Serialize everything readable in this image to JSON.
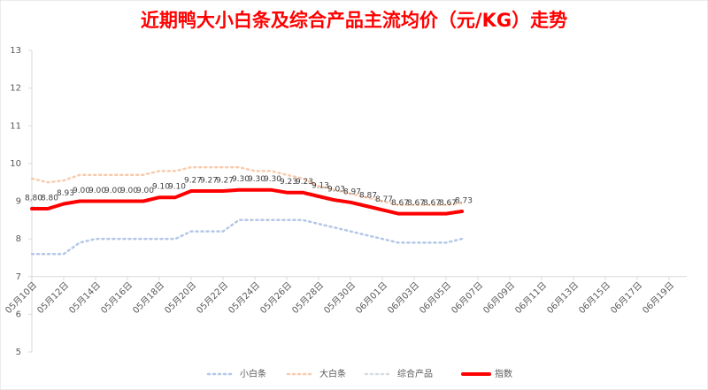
{
  "chart_data": {
    "type": "line",
    "title": "近期鸭大小白条及综合产品主流均价（元/KG）走势",
    "categories": [
      "05月10日",
      null,
      "05月12日",
      null,
      "05月14日",
      null,
      "05月16日",
      null,
      "05月18日",
      null,
      "05月20日",
      null,
      "05月22日",
      null,
      "05月24日",
      null,
      "05月26日",
      null,
      "05月28日",
      null,
      "05月30日",
      null,
      "06月01日",
      null,
      "06月03日",
      null,
      "06月05日",
      null,
      "06月07日",
      null,
      "06月09日",
      null,
      "06月11日",
      null,
      "06月13日",
      null,
      "06月15日",
      null,
      "06月17日",
      null,
      "06月19日"
    ],
    "series": [
      {
        "name": "小白条",
        "color": "#b4c7e7",
        "style": "dotted",
        "values": [
          7.6,
          7.6,
          7.6,
          7.9,
          8.0,
          8.0,
          8.0,
          8.0,
          8.0,
          8.0,
          8.2,
          8.2,
          8.2,
          8.5,
          8.5,
          8.5,
          8.5,
          8.5,
          8.4,
          8.3,
          8.2,
          8.1,
          8.0,
          7.9,
          7.9,
          7.9,
          7.9,
          8.0,
          null,
          null,
          null,
          null,
          null,
          null,
          null,
          null,
          null,
          null,
          null,
          null,
          null
        ]
      },
      {
        "name": "大白条",
        "color": "#f8cbad",
        "style": "dotted",
        "values": [
          9.6,
          9.5,
          9.55,
          9.7,
          9.7,
          9.7,
          9.7,
          9.7,
          9.8,
          9.8,
          9.9,
          9.9,
          9.9,
          9.9,
          9.8,
          9.8,
          9.7,
          9.6,
          9.4,
          9.3,
          9.2,
          9.1,
          9.0,
          8.9,
          8.9,
          8.9,
          8.9,
          8.95,
          null,
          null,
          null,
          null,
          null,
          null,
          null,
          null,
          null,
          null,
          null,
          null,
          null
        ]
      },
      {
        "name": "综合产品",
        "color": "#d6dce5",
        "style": "dotted",
        "values": [
          8.85,
          8.8,
          8.9,
          9.0,
          9.0,
          9.0,
          9.0,
          9.0,
          9.1,
          9.1,
          9.25,
          9.25,
          9.25,
          9.3,
          9.3,
          9.3,
          9.25,
          9.2,
          9.1,
          9.0,
          8.95,
          8.85,
          8.75,
          8.65,
          8.65,
          8.65,
          8.65,
          8.7,
          null,
          null,
          null,
          null,
          null,
          null,
          null,
          null,
          null,
          null,
          null,
          null,
          null
        ]
      },
      {
        "name": "指数",
        "color": "#ff0000",
        "style": "solid",
        "values": [
          8.8,
          8.8,
          8.93,
          9.0,
          9.0,
          9.0,
          9.0,
          9.0,
          9.1,
          9.1,
          9.27,
          9.27,
          9.27,
          9.3,
          9.3,
          9.3,
          9.23,
          9.23,
          9.13,
          9.03,
          8.97,
          8.87,
          8.77,
          8.67,
          8.67,
          8.67,
          8.67,
          8.73,
          null,
          null,
          null,
          null,
          null,
          null,
          null,
          null,
          null,
          null,
          null,
          null,
          null
        ],
        "value_labels": [
          "8.80",
          "8.80",
          "8.93",
          "9.00",
          "9.00",
          "9.00",
          "9.00",
          "9.00",
          "9.10",
          "9.10",
          "9.27",
          "9.27",
          "9.27",
          "9.30",
          "9.30",
          "9.30",
          "9.23",
          "9.23",
          "9.13",
          "9.03",
          "8.97",
          "8.87",
          "8.77",
          "8.67",
          "8.67",
          "8.67",
          "8.67",
          "8.73",
          null,
          null,
          null,
          null,
          null,
          null,
          null,
          null,
          null,
          null,
          null,
          null,
          null
        ]
      }
    ],
    "ylim": [
      5,
      13
    ],
    "yticks": [
      5,
      6,
      7,
      8,
      9,
      10,
      11,
      12,
      13
    ],
    "x_axis_crosses": 7,
    "grid": false,
    "legend": "bottom"
  }
}
